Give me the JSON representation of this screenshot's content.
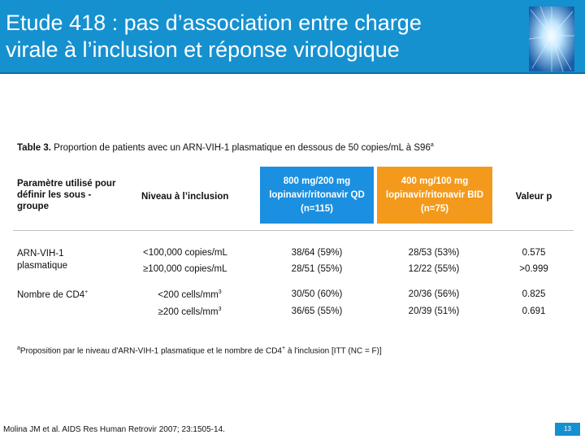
{
  "header": {
    "title": "Etude 418 : pas d’association entre charge\nvirale à l’inclusion et réponse virologique"
  },
  "colors": {
    "header_bg": "#1591d0",
    "col_blue": "#1b8fe0",
    "col_orange": "#f39a1c"
  },
  "table": {
    "caption_bold": "Table 3.",
    "caption_text": " Proportion de patients avec un ARN-VIH-1 plasmatique en dessous de  50 copies/mL à S96",
    "caption_sup": "a",
    "headers": {
      "param": "Paramètre utilisé pour définir les sous -groupe",
      "niveau": "Niveau à l’inclusion",
      "col_qd": "800 mg/200 mg lopinavir/ritonavir QD (n=115)",
      "col_bid": "400 mg/100 mg lopinavir/ritonavir BID (n=75)",
      "valeur": "Valeur p"
    },
    "groups": [
      {
        "param": "ARN-VIH-1 plasmatique",
        "rows": [
          {
            "niveau": "<100,000 copies/mL",
            "qd": "38/64 (59%)",
            "bid": "28/53 (53%)",
            "p": "0.575"
          },
          {
            "niveau": "≥100,000 copies/mL",
            "qd": "28/51 (55%)",
            "bid": "12/22 (55%)",
            "p": ">0.999"
          }
        ]
      },
      {
        "param": "Nombre de CD4",
        "param_sup": "+",
        "rows": [
          {
            "niveau": "<200 cells/mm",
            "niveau_sup": "3",
            "qd": "30/50 (60%)",
            "bid": "20/36 (56%)",
            "p": "0.825"
          },
          {
            "niveau": "≥200 cells/mm",
            "niveau_sup": "3",
            "qd": "36/65 (55%)",
            "bid": "20/39 (51%)",
            "p": "0.691"
          }
        ]
      }
    ],
    "footnote_sup": "a",
    "footnote": "Proposition par le niveau d'ARN-VIH-1 plasmatique et le nombre de CD4",
    "footnote_sup2": "+",
    "footnote_end": " à l'inclusion [ITT (NC = F)]"
  },
  "reference": "Molina JM et al. AIDS Res Human Retrovir 2007; 23:1505-14.",
  "page_number": "13"
}
